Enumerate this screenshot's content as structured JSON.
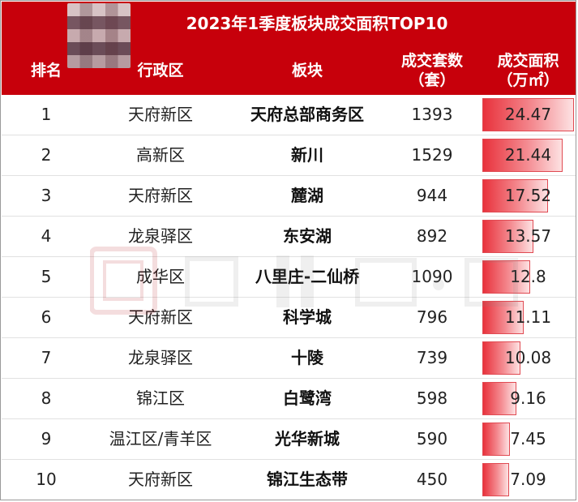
{
  "title": "2023年1季度板块成交面积TOP10",
  "columns": {
    "rank": "排名",
    "district": "行政区",
    "block": "板块",
    "count_line1": "成交套数",
    "count_line2": "（套）",
    "area_line1": "成交面积",
    "area_line2": "（万㎡）"
  },
  "colors": {
    "header_bg": "#c7000b",
    "header_text": "#ffffff",
    "bar": "#e8323c"
  },
  "rows": [
    {
      "rank": "1",
      "district": "天府新区",
      "block": "天府总部商务区",
      "count": "1393",
      "area": "24.47"
    },
    {
      "rank": "2",
      "district": "高新区",
      "block": "新川",
      "count": "1529",
      "area": "21.44"
    },
    {
      "rank": "3",
      "district": "天府新区",
      "block": "麓湖",
      "count": "944",
      "area": "17.52"
    },
    {
      "rank": "4",
      "district": "龙泉驿区",
      "block": "东安湖",
      "count": "892",
      "area": "13.57"
    },
    {
      "rank": "5",
      "district": "成华区",
      "block": "八里庄-二仙桥",
      "count": "1090",
      "area": "12.8"
    },
    {
      "rank": "6",
      "district": "天府新区",
      "block": "科学城",
      "count": "796",
      "area": "11.11"
    },
    {
      "rank": "7",
      "district": "龙泉驿区",
      "block": "十陵",
      "count": "739",
      "area": "10.08"
    },
    {
      "rank": "8",
      "district": "锦江区",
      "block": "白鹭湾",
      "count": "598",
      "area": "9.16"
    },
    {
      "rank": "9",
      "district": "温江区/青羊区",
      "block": "光华新城",
      "count": "590",
      "area": "7.45"
    },
    {
      "rank": "10",
      "district": "天府新区",
      "block": "锦江生态带",
      "count": "450",
      "area": "7.09"
    }
  ],
  "chart_data": {
    "type": "table",
    "title": "2023年1季度板块成交面积TOP10",
    "columns": [
      "排名",
      "行政区",
      "板块",
      "成交套数（套）",
      "成交面积（万㎡）"
    ],
    "categories": [
      "天府总部商务区",
      "新川",
      "麓湖",
      "东安湖",
      "八里庄-二仙桥",
      "科学城",
      "十陵",
      "白鹭湾",
      "光华新城",
      "锦江生态带"
    ],
    "series": [
      {
        "name": "成交套数（套）",
        "values": [
          1393,
          1529,
          944,
          892,
          1090,
          796,
          739,
          598,
          590,
          450
        ]
      },
      {
        "name": "成交面积（万㎡）",
        "values": [
          24.47,
          21.44,
          17.52,
          13.57,
          12.8,
          11.11,
          10.08,
          9.16,
          7.45,
          7.09
        ]
      }
    ],
    "bar_column": "成交面积（万㎡）",
    "bar_max": 24.47
  }
}
